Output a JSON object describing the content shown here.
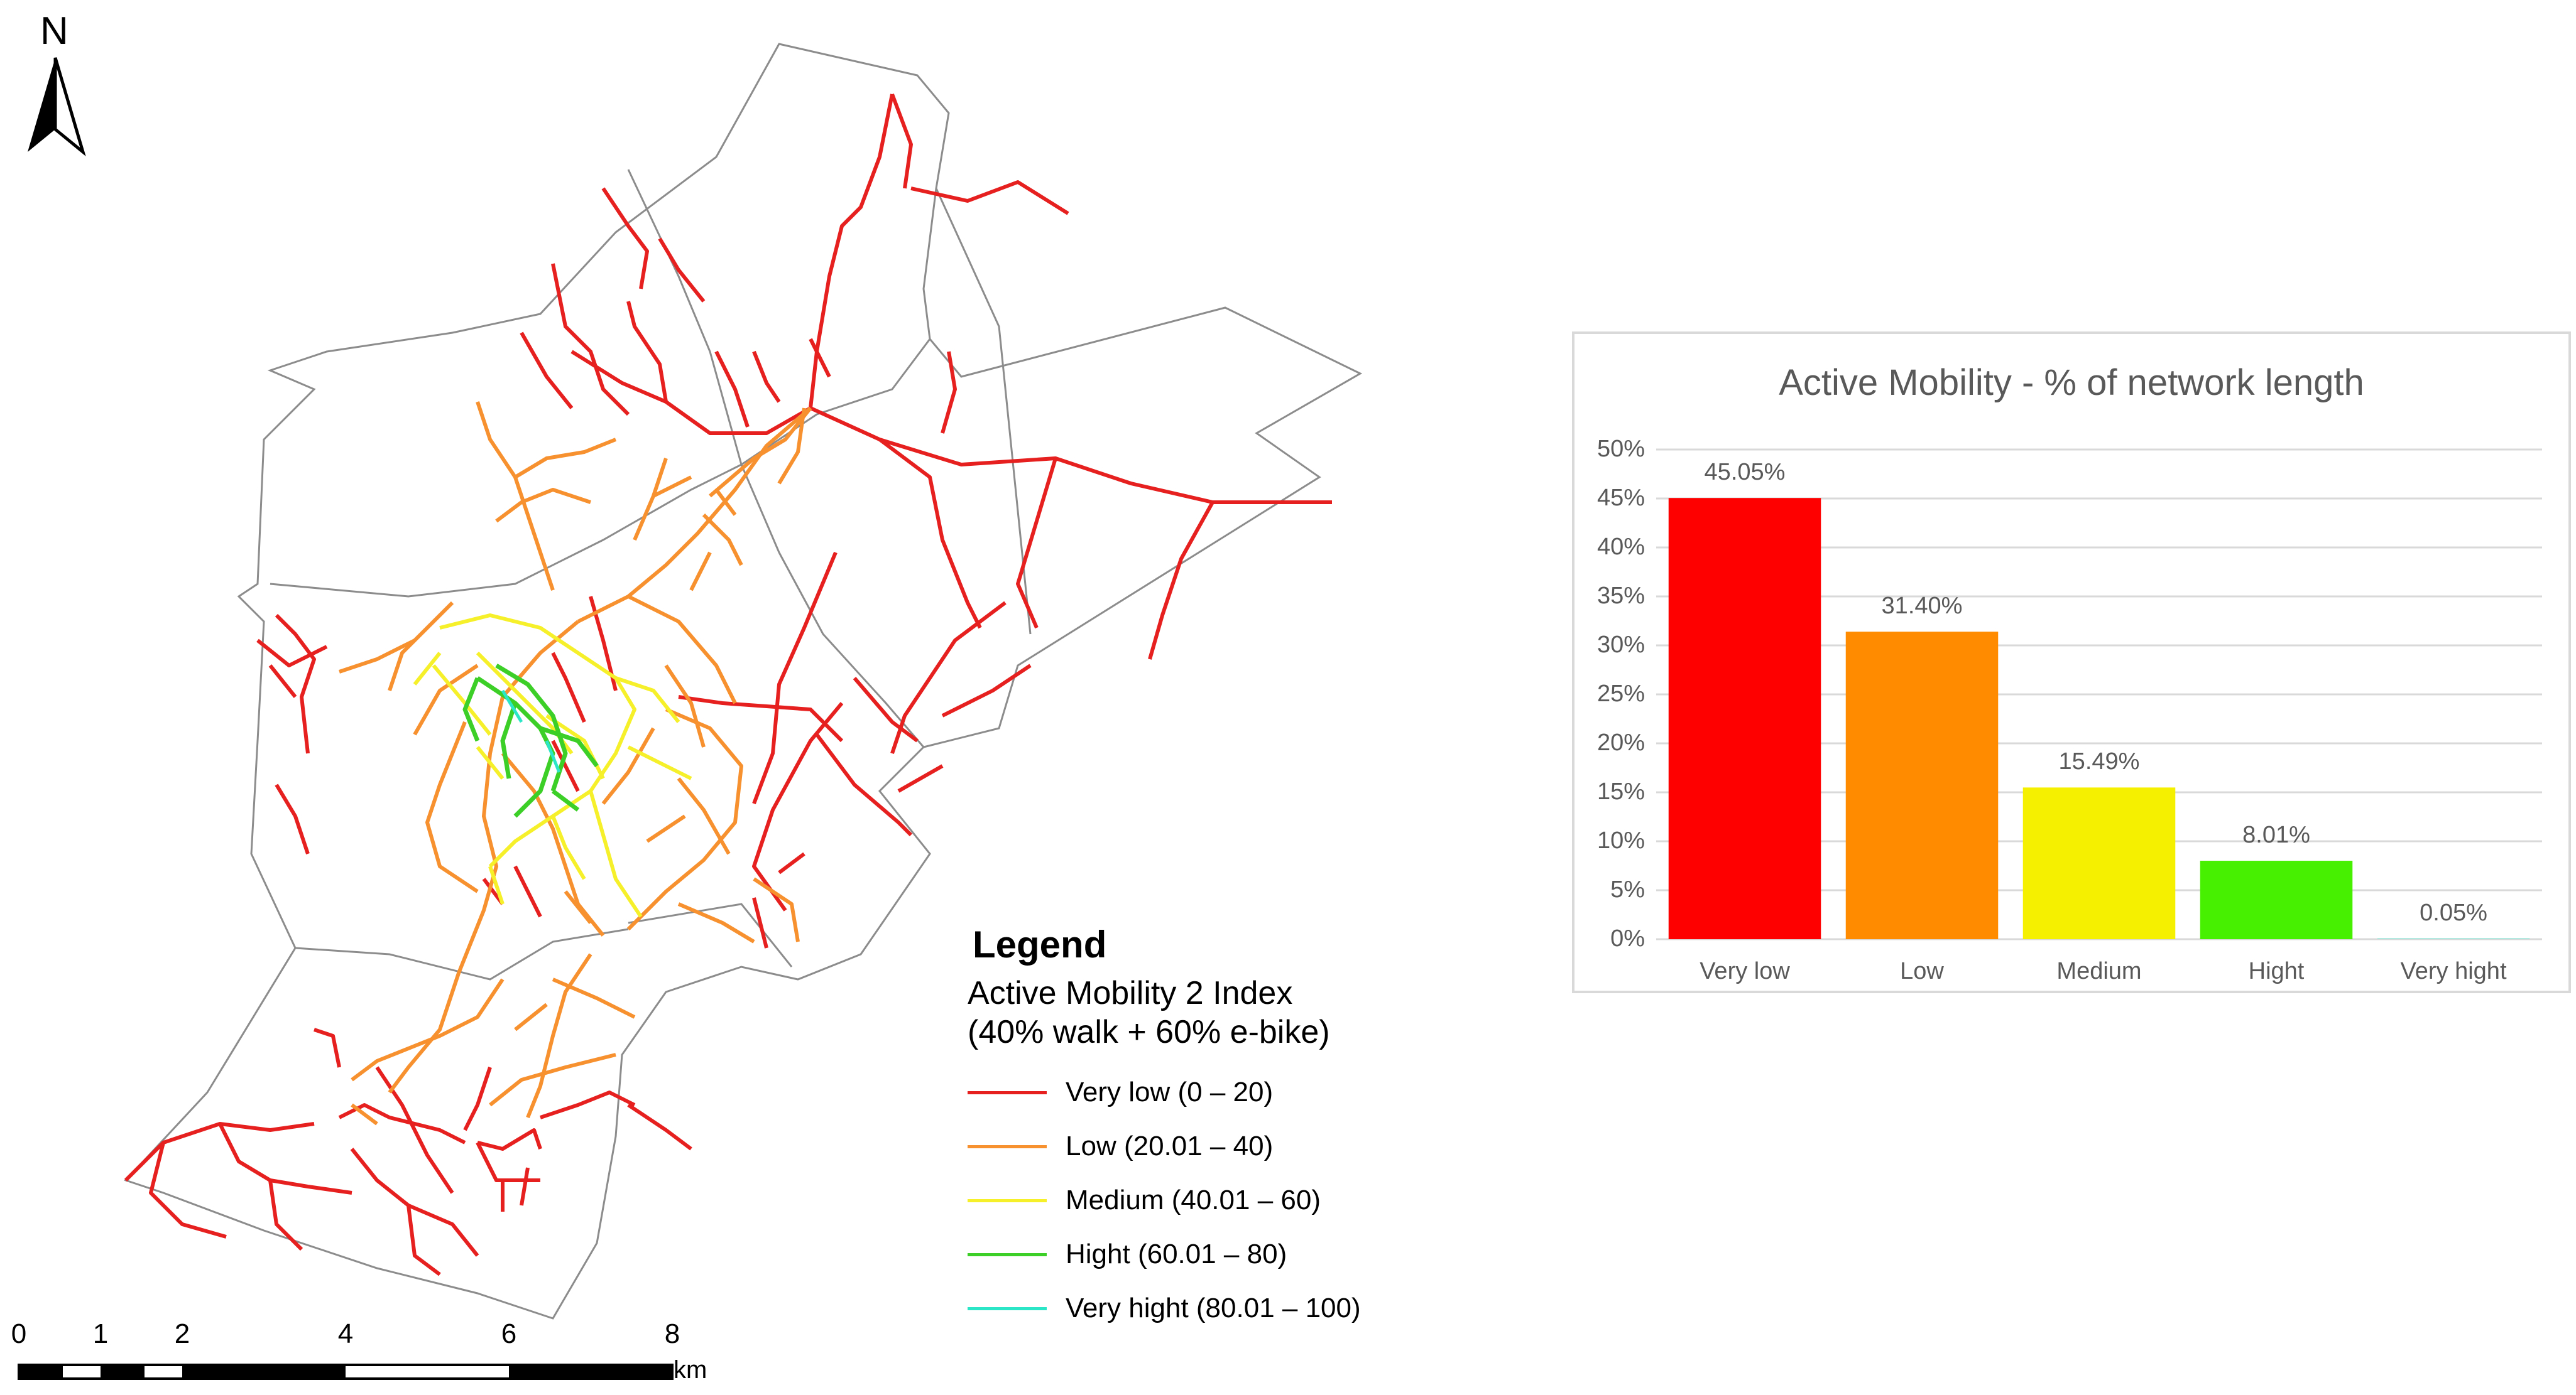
{
  "map": {
    "north_label": "N",
    "boundary_color": "#8c8c8c",
    "legend": {
      "title": "Legend",
      "index_name": "Active Mobility 2 Index",
      "index_formula": "(40% walk + 60% e-bike)",
      "classes": [
        {
          "label": "Very low (0 – 20)",
          "color": "#e61f1f"
        },
        {
          "label": "Low (20.01 – 40)",
          "color": "#f7902e"
        },
        {
          "label": "Medium (40.01 – 60)",
          "color": "#f5f02a"
        },
        {
          "label": "Hight (60.01 – 80)",
          "color": "#3ccf28"
        },
        {
          "label": "Very hight (80.01 – 100)",
          "color": "#2ce6c8"
        }
      ]
    },
    "scale_bar": {
      "ticks": [
        "0",
        "1",
        "2",
        "4",
        "6",
        "8"
      ],
      "unit": "km"
    }
  },
  "chart_data": {
    "type": "bar",
    "title": "Active Mobility - % of network length",
    "categories": [
      "Very low",
      "Low",
      "Medium",
      "Hight",
      "Very hight"
    ],
    "values": [
      45.05,
      31.4,
      15.49,
      8.01,
      0.05
    ],
    "value_labels": [
      "45.05%",
      "31.40%",
      "15.49%",
      "8.01%",
      "0.05%"
    ],
    "colors": [
      "#ff0000",
      "#ff8c00",
      "#f5f000",
      "#47f000",
      "#2ce6c8"
    ],
    "ylim": [
      0,
      50
    ],
    "yticks": [
      0,
      5,
      10,
      15,
      20,
      25,
      30,
      35,
      40,
      45,
      50
    ],
    "ytick_labels": [
      "0%",
      "5%",
      "10%",
      "15%",
      "20%",
      "25%",
      "30%",
      "35%",
      "40%",
      "45%",
      "50%"
    ],
    "gridlines": true,
    "xlabel": "",
    "ylabel": ""
  }
}
